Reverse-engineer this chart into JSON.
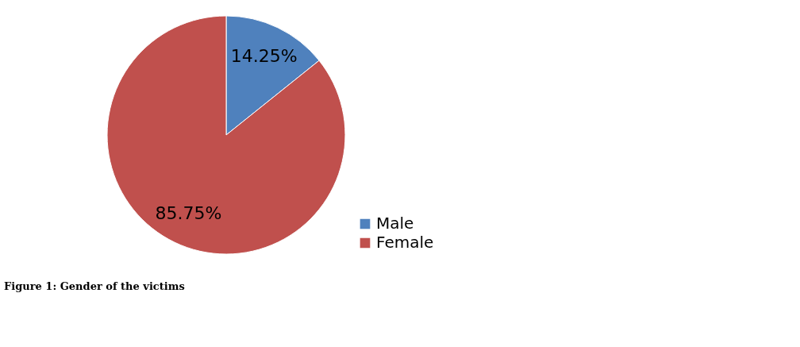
{
  "chart_data": {
    "type": "pie",
    "categories": [
      "Male",
      "Female"
    ],
    "values": [
      14.25,
      85.75
    ],
    "colors": [
      "#4f81bd",
      "#c0504d"
    ],
    "value_labels": [
      "14.25%",
      "85.75%"
    ],
    "legend": "bottom right",
    "annotations": [
      "Figure 1: Gender of the victims"
    ]
  }
}
